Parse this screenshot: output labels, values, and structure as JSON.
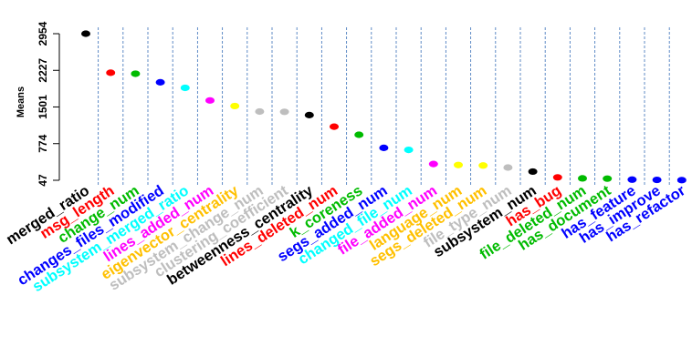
{
  "chart_data": {
    "type": "scatter",
    "ylabel": "Means",
    "yticks": [
      47,
      774,
      1501,
      2227,
      2954
    ],
    "ylim": [
      47,
      2954
    ],
    "grid": "vertical-dashed-between-points",
    "categories": [
      "merged_ratio",
      "msg_length",
      "change_num",
      "changes_files_modified",
      "subsystem_merged_ratio",
      "lines_added_num",
      "eigenvector_centrality",
      "subsystem_change_num",
      "clustering_coefficient",
      "betweenness_centrality",
      "lines_deleted_num",
      "k_coreness",
      "segs_added_num",
      "changed_file_num",
      "file_added_num",
      "language_num",
      "segs_deleted_num",
      "file_type_num",
      "subsystem_num",
      "has_bug",
      "file_deleted_num",
      "has_document",
      "has_feature",
      "has_improve",
      "has_refactor"
    ],
    "values": [
      2954,
      2180,
      2160,
      1990,
      1880,
      1630,
      1520,
      1410,
      1405,
      1340,
      1110,
      950,
      690,
      650,
      370,
      350,
      340,
      300,
      220,
      105,
      85,
      80,
      60,
      55,
      50
    ],
    "colors": [
      "#000000",
      "#ff0000",
      "#00bb00",
      "#0000ff",
      "#00ffff",
      "#ff00ff",
      "#ffff00",
      "#bebebe",
      "#bebebe",
      "#000000",
      "#ff0000",
      "#00bb00",
      "#0000ff",
      "#00ffff",
      "#ff00ff",
      "#ffc000",
      "#ffc000",
      "#bebebe",
      "#000000",
      "#ff0000",
      "#00bb00",
      "#00bb00",
      "#0000ff",
      "#0000ff",
      "#0000ff"
    ],
    "label_colors": [
      "#000000",
      "#ff0000",
      "#00bb00",
      "#0000ff",
      "#00ffff",
      "#ff00ff",
      "#ffc000",
      "#bebebe",
      "#bebebe",
      "#000000",
      "#ff0000",
      "#00bb00",
      "#0000ff",
      "#00ffff",
      "#ff00ff",
      "#ffc000",
      "#ffc000",
      "#bebebe",
      "#000000",
      "#ff0000",
      "#00bb00",
      "#00bb00",
      "#0000ff",
      "#0000ff",
      "#0000ff"
    ],
    "point_colors_override": {
      "6": "#ffff00",
      "15": "#ffff00",
      "16": "#ffff00"
    }
  }
}
